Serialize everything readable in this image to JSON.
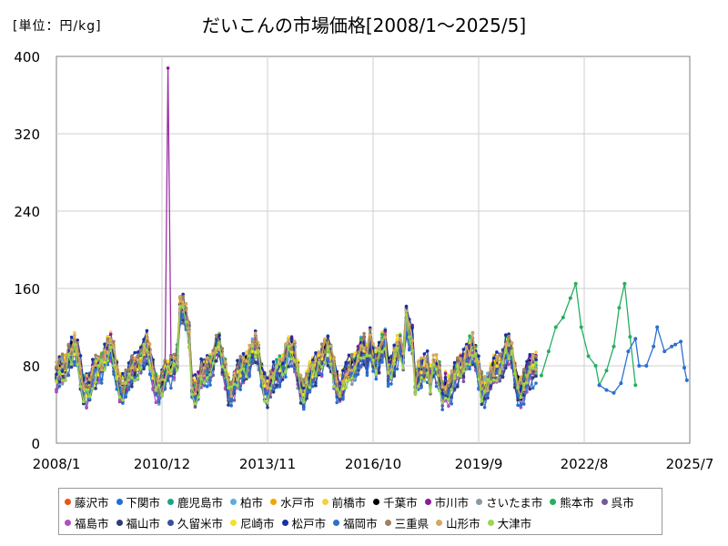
{
  "chart_data": {
    "type": "line",
    "title": "だいこんの市場価格[2008/1～2025/5]",
    "unit_label": "[単位：円/kg]",
    "x_ticks": [
      "2008/1",
      "2010/12",
      "2013/11",
      "2016/10",
      "2019/9",
      "2022/8",
      "2025/7"
    ],
    "y_ticks": [
      "0",
      "80",
      "160",
      "240",
      "320",
      "400"
    ],
    "ylim": [
      0,
      400
    ],
    "grid": true,
    "legend_position": "bottom",
    "series": [
      {
        "name": "藤沢市",
        "color": "#e8541c"
      },
      {
        "name": "下関市",
        "color": "#1f6fd6"
      },
      {
        "name": "鹿児島市",
        "color": "#17a589"
      },
      {
        "name": "柏市",
        "color": "#5dade2"
      },
      {
        "name": "水戸市",
        "color": "#f0a500"
      },
      {
        "name": "前橋市",
        "color": "#f4d03f"
      },
      {
        "name": "千葉市",
        "color": "#000000"
      },
      {
        "name": "市川市",
        "color": "#8e1a9b"
      },
      {
        "name": "さいたま市",
        "color": "#8a9aa5"
      },
      {
        "name": "熊本市",
        "color": "#27ae60"
      },
      {
        "name": "呉市",
        "color": "#76589a"
      },
      {
        "name": "福島市",
        "color": "#b04fbf"
      },
      {
        "name": "福山市",
        "color": "#2c3e7a"
      },
      {
        "name": "久留米市",
        "color": "#3c4f9e"
      },
      {
        "name": "尼崎市",
        "color": "#f7e020"
      },
      {
        "name": "松戸市",
        "color": "#1a2fa0"
      },
      {
        "name": "福岡市",
        "color": "#2e6fcf"
      },
      {
        "name": "三重県",
        "color": "#a08060"
      },
      {
        "name": "山形市",
        "color": "#d4a860"
      },
      {
        "name": "大津市",
        "color": "#9ad84a"
      }
    ],
    "highlights": {
      "ichikawa_spike": {
        "x": 2011.1,
        "y": 388
      },
      "late_fukuoka": [
        [
          2023.0,
          60
        ],
        [
          2023.2,
          55
        ],
        [
          2023.4,
          52
        ],
        [
          2023.6,
          62
        ],
        [
          2023.8,
          95
        ],
        [
          2024.0,
          108
        ],
        [
          2024.1,
          80
        ],
        [
          2024.3,
          80
        ],
        [
          2024.5,
          100
        ],
        [
          2024.6,
          120
        ],
        [
          2024.8,
          95
        ],
        [
          2025.0,
          100
        ],
        [
          2025.1,
          102
        ],
        [
          2025.25,
          105
        ],
        [
          2025.35,
          78
        ],
        [
          2025.42,
          65
        ]
      ],
      "late_kumamoto": [
        [
          2021.4,
          70
        ],
        [
          2021.6,
          95
        ],
        [
          2021.8,
          120
        ],
        [
          2022.0,
          130
        ],
        [
          2022.2,
          150
        ],
        [
          2022.35,
          165
        ],
        [
          2022.5,
          120
        ],
        [
          2022.7,
          90
        ],
        [
          2022.9,
          80
        ],
        [
          2023.0,
          60
        ],
        [
          2023.2,
          75
        ],
        [
          2023.4,
          100
        ],
        [
          2023.55,
          140
        ],
        [
          2023.7,
          165
        ],
        [
          2023.85,
          110
        ],
        [
          2024.0,
          60
        ]
      ]
    }
  }
}
